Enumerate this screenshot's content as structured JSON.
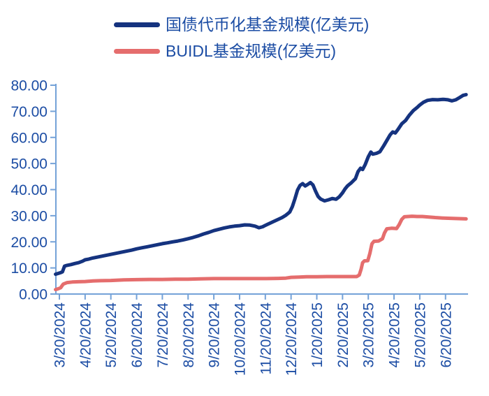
{
  "colors": {
    "background": "#ffffff",
    "axis": "#74A2D8",
    "label_text": "#1C4DA4",
    "series_treasury": "#15337F",
    "series_buidl": "#E56D6D"
  },
  "legend": {
    "items": [
      {
        "label": "国债代币化基金规模(亿美元)",
        "color": "#15337F"
      },
      {
        "label": "BUIDL基金规模(亿美元)",
        "color": "#E56D6D"
      }
    ]
  },
  "chart_data": {
    "type": "line",
    "title": "",
    "xlabel": "",
    "ylabel": "",
    "ylim": [
      0,
      80
    ],
    "grid": false,
    "legend_position": "top",
    "x_unit": "months since 3/20/2024",
    "x_tick_labels": [
      "3/20/2024",
      "4/20/2024",
      "5/20/2024",
      "6/20/2024",
      "7/20/2024",
      "8/20/2024",
      "9/20/2024",
      "10/20/2024",
      "11/20/2024",
      "12/20/2024",
      "1/20/2025",
      "2/20/2025",
      "3/20/2025",
      "4/20/2025",
      "5/20/2025",
      "6/20/2025"
    ],
    "y_ticks": {
      "labels": [
        "80.00",
        "70.00",
        "60.00",
        "50.00",
        "40.00",
        "30.00",
        "20.00",
        "10.00",
        "0.00"
      ],
      "values": [
        80,
        70,
        60,
        50,
        40,
        30,
        20,
        10,
        0
      ]
    },
    "series": [
      {
        "name": "国债代币化基金规模(亿美元)",
        "color": "#15337F",
        "points": [
          [
            -0.15,
            7.6
          ],
          [
            -0.05,
            7.9
          ],
          [
            0.05,
            8.2
          ],
          [
            0.12,
            8.5
          ],
          [
            0.2,
            10.7
          ],
          [
            0.3,
            11.0
          ],
          [
            0.45,
            11.3
          ],
          [
            0.6,
            11.7
          ],
          [
            0.75,
            12.0
          ],
          [
            0.9,
            12.6
          ],
          [
            1.0,
            13.1
          ],
          [
            1.15,
            13.4
          ],
          [
            1.3,
            13.8
          ],
          [
            1.5,
            14.2
          ],
          [
            1.7,
            14.6
          ],
          [
            1.85,
            14.9
          ],
          [
            2.0,
            15.2
          ],
          [
            2.2,
            15.6
          ],
          [
            2.4,
            16.0
          ],
          [
            2.6,
            16.4
          ],
          [
            2.8,
            16.8
          ],
          [
            3.0,
            17.3
          ],
          [
            3.2,
            17.7
          ],
          [
            3.4,
            18.1
          ],
          [
            3.6,
            18.5
          ],
          [
            3.8,
            18.9
          ],
          [
            4.0,
            19.3
          ],
          [
            4.2,
            19.6
          ],
          [
            4.4,
            20.0
          ],
          [
            4.6,
            20.3
          ],
          [
            4.8,
            20.7
          ],
          [
            5.0,
            21.2
          ],
          [
            5.2,
            21.7
          ],
          [
            5.4,
            22.3
          ],
          [
            5.6,
            23.0
          ],
          [
            5.8,
            23.6
          ],
          [
            6.0,
            24.3
          ],
          [
            6.2,
            24.8
          ],
          [
            6.4,
            25.3
          ],
          [
            6.6,
            25.7
          ],
          [
            6.8,
            26.0
          ],
          [
            7.0,
            26.2
          ],
          [
            7.2,
            26.5
          ],
          [
            7.4,
            26.4
          ],
          [
            7.6,
            26.0
          ],
          [
            7.75,
            25.4
          ],
          [
            7.9,
            25.8
          ],
          [
            8.0,
            26.3
          ],
          [
            8.15,
            27.0
          ],
          [
            8.3,
            27.7
          ],
          [
            8.5,
            28.6
          ],
          [
            8.65,
            29.3
          ],
          [
            8.8,
            30.2
          ],
          [
            8.95,
            31.4
          ],
          [
            9.05,
            33.5
          ],
          [
            9.15,
            36.5
          ],
          [
            9.25,
            39.8
          ],
          [
            9.35,
            41.6
          ],
          [
            9.45,
            42.3
          ],
          [
            9.55,
            41.4
          ],
          [
            9.65,
            42.0
          ],
          [
            9.75,
            42.7
          ],
          [
            9.85,
            41.8
          ],
          [
            9.95,
            39.4
          ],
          [
            10.05,
            37.4
          ],
          [
            10.15,
            36.4
          ],
          [
            10.3,
            35.7
          ],
          [
            10.45,
            36.1
          ],
          [
            10.6,
            36.6
          ],
          [
            10.75,
            36.3
          ],
          [
            10.88,
            37.3
          ],
          [
            11.0,
            38.8
          ],
          [
            11.1,
            40.3
          ],
          [
            11.2,
            41.5
          ],
          [
            11.35,
            42.7
          ],
          [
            11.5,
            44.2
          ],
          [
            11.6,
            46.9
          ],
          [
            11.7,
            48.2
          ],
          [
            11.78,
            47.7
          ],
          [
            11.88,
            49.6
          ],
          [
            12.0,
            52.6
          ],
          [
            12.1,
            54.4
          ],
          [
            12.18,
            53.6
          ],
          [
            12.32,
            53.9
          ],
          [
            12.45,
            54.5
          ],
          [
            12.6,
            56.8
          ],
          [
            12.72,
            58.8
          ],
          [
            12.85,
            61.0
          ],
          [
            12.95,
            62.1
          ],
          [
            13.05,
            61.7
          ],
          [
            13.15,
            63.0
          ],
          [
            13.3,
            65.2
          ],
          [
            13.45,
            66.5
          ],
          [
            13.6,
            68.6
          ],
          [
            13.75,
            70.3
          ],
          [
            13.9,
            71.5
          ],
          [
            14.0,
            72.4
          ],
          [
            14.15,
            73.5
          ],
          [
            14.3,
            74.2
          ],
          [
            14.5,
            74.5
          ],
          [
            14.7,
            74.4
          ],
          [
            14.9,
            74.6
          ],
          [
            15.1,
            74.4
          ],
          [
            15.25,
            74.0
          ],
          [
            15.4,
            74.4
          ],
          [
            15.55,
            75.3
          ],
          [
            15.68,
            76.1
          ],
          [
            15.8,
            76.4
          ]
        ]
      },
      {
        "name": "BUIDL基金规模(亿美元)",
        "color": "#E56D6D",
        "points": [
          [
            -0.15,
            1.7
          ],
          [
            -0.05,
            2.0
          ],
          [
            0.05,
            2.4
          ],
          [
            0.15,
            3.8
          ],
          [
            0.3,
            4.4
          ],
          [
            0.5,
            4.6
          ],
          [
            0.75,
            4.7
          ],
          [
            1.0,
            4.8
          ],
          [
            1.3,
            5.0
          ],
          [
            1.6,
            5.1
          ],
          [
            2.0,
            5.2
          ],
          [
            2.5,
            5.4
          ],
          [
            3.0,
            5.5
          ],
          [
            3.5,
            5.6
          ],
          [
            4.0,
            5.6
          ],
          [
            4.5,
            5.7
          ],
          [
            5.0,
            5.7
          ],
          [
            5.5,
            5.8
          ],
          [
            6.0,
            5.9
          ],
          [
            6.5,
            5.9
          ],
          [
            7.0,
            5.9
          ],
          [
            7.5,
            5.9
          ],
          [
            8.0,
            5.9
          ],
          [
            8.5,
            6.0
          ],
          [
            8.8,
            6.1
          ],
          [
            9.0,
            6.4
          ],
          [
            9.3,
            6.5
          ],
          [
            9.6,
            6.6
          ],
          [
            10.0,
            6.6
          ],
          [
            10.4,
            6.7
          ],
          [
            10.8,
            6.7
          ],
          [
            11.2,
            6.7
          ],
          [
            11.55,
            6.7
          ],
          [
            11.65,
            7.3
          ],
          [
            11.72,
            9.5
          ],
          [
            11.78,
            12.0
          ],
          [
            11.85,
            12.7
          ],
          [
            11.98,
            12.8
          ],
          [
            12.06,
            15.5
          ],
          [
            12.14,
            19.2
          ],
          [
            12.22,
            20.2
          ],
          [
            12.4,
            20.3
          ],
          [
            12.55,
            21.2
          ],
          [
            12.63,
            23.4
          ],
          [
            12.72,
            25.0
          ],
          [
            12.9,
            25.2
          ],
          [
            13.1,
            25.1
          ],
          [
            13.2,
            26.6
          ],
          [
            13.3,
            28.6
          ],
          [
            13.4,
            29.6
          ],
          [
            13.55,
            29.7
          ],
          [
            13.7,
            29.8
          ],
          [
            13.9,
            29.7
          ],
          [
            14.1,
            29.7
          ],
          [
            14.35,
            29.5
          ],
          [
            14.6,
            29.3
          ],
          [
            14.9,
            29.1
          ],
          [
            15.2,
            29.0
          ],
          [
            15.5,
            28.9
          ],
          [
            15.8,
            28.8
          ]
        ]
      }
    ]
  }
}
